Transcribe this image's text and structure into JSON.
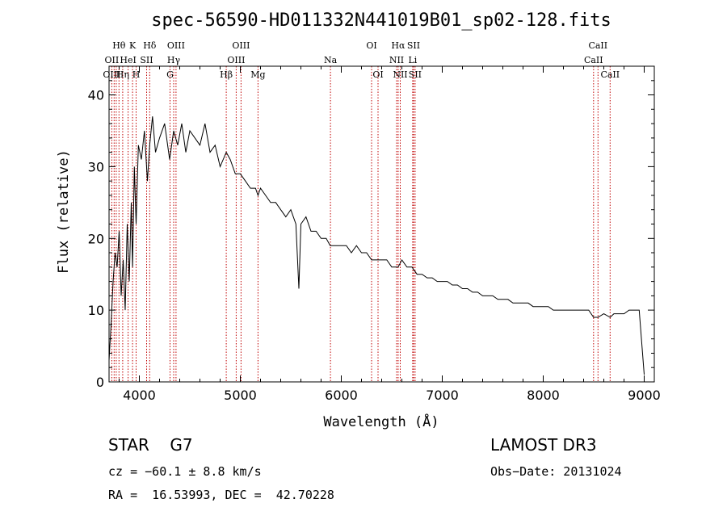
{
  "chart_data": {
    "type": "line",
    "title": "spec-56590-HD011332N441019B01_sp02-128.fits",
    "xlabel": "Wavelength (Å)",
    "ylabel": "Flux (relative)",
    "xlim": [
      3700,
      9100
    ],
    "ylim": [
      0,
      44
    ],
    "x_ticks": [
      4000,
      5000,
      6000,
      7000,
      8000,
      9000
    ],
    "y_ticks": [
      0,
      10,
      20,
      30,
      40
    ],
    "series": [
      {
        "name": "flux",
        "x": [
          3700,
          3720,
          3740,
          3760,
          3780,
          3800,
          3820,
          3840,
          3860,
          3880,
          3900,
          3920,
          3933,
          3950,
          3968,
          3990,
          4020,
          4050,
          4080,
          4102,
          4130,
          4160,
          4200,
          4250,
          4300,
          4340,
          4380,
          4420,
          4460,
          4500,
          4550,
          4600,
          4650,
          4700,
          4750,
          4800,
          4861,
          4900,
          4950,
          5000,
          5050,
          5100,
          5150,
          5175,
          5200,
          5250,
          5300,
          5350,
          5400,
          5450,
          5500,
          5550,
          5580,
          5600,
          5650,
          5700,
          5750,
          5800,
          5850,
          5890,
          5950,
          6000,
          6050,
          6100,
          6150,
          6200,
          6250,
          6300,
          6350,
          6400,
          6450,
          6500,
          6563,
          6600,
          6650,
          6700,
          6750,
          6800,
          6850,
          6900,
          6950,
          7000,
          7050,
          7100,
          7150,
          7200,
          7250,
          7300,
          7350,
          7400,
          7450,
          7500,
          7550,
          7600,
          7650,
          7700,
          7750,
          7800,
          7850,
          7900,
          7950,
          8000,
          8050,
          8100,
          8150,
          8200,
          8250,
          8300,
          8350,
          8400,
          8450,
          8498,
          8542,
          8600,
          8662,
          8700,
          8750,
          8800,
          8850,
          8900,
          8950,
          9000
        ],
        "y": [
          3,
          8,
          14,
          18,
          16,
          21,
          12,
          17,
          10,
          22,
          14,
          25,
          16,
          30,
          22,
          33,
          31,
          35,
          28,
          33,
          37,
          32,
          34,
          36,
          31,
          35,
          33,
          36,
          32,
          35,
          34,
          33,
          36,
          32,
          33,
          30,
          32,
          31,
          29,
          29,
          28,
          27,
          27,
          26,
          27,
          26,
          25,
          25,
          24,
          23,
          24,
          22,
          13,
          22,
          23,
          21,
          21,
          20,
          20,
          19,
          19,
          19,
          19,
          18,
          19,
          18,
          18,
          17,
          17,
          17,
          17,
          16,
          16,
          17,
          16,
          16,
          15,
          15,
          14.5,
          14.5,
          14,
          14,
          14,
          13.5,
          13.5,
          13,
          13,
          12.5,
          12.5,
          12,
          12,
          12,
          11.5,
          11.5,
          11.5,
          11,
          11,
          11,
          11,
          10.5,
          10.5,
          10.5,
          10.5,
          10,
          10,
          10,
          10,
          10,
          10,
          10,
          10,
          9,
          9,
          9.5,
          9,
          9.5,
          9.5,
          9.5,
          10,
          10,
          10,
          1
        ]
      }
    ],
    "line_labels": [
      {
        "text": "Hθ",
        "x": 3798,
        "row": 1
      },
      {
        "text": "OII",
        "x": 3727,
        "row": 2
      },
      {
        "text": "OIII",
        "x": 3727,
        "row": 3
      },
      {
        "text": "HeI",
        "x": 3889,
        "row": 2
      },
      {
        "text": "Hη",
        "x": 3835,
        "row": 3
      },
      {
        "text": "K",
        "x": 3933,
        "row": 1
      },
      {
        "text": "H",
        "x": 3968,
        "row": 3
      },
      {
        "text": "Hδ",
        "x": 4102,
        "row": 1
      },
      {
        "text": "SII",
        "x": 4072,
        "row": 2
      },
      {
        "text": "OIII",
        "x": 4363,
        "row": 1
      },
      {
        "text": "Hγ",
        "x": 4340,
        "row": 2
      },
      {
        "text": "G",
        "x": 4304,
        "row": 3
      },
      {
        "text": "Hβ",
        "x": 4861,
        "row": 3
      },
      {
        "text": "OIII",
        "x": 5007,
        "row": 1
      },
      {
        "text": "OIII",
        "x": 4959,
        "row": 2
      },
      {
        "text": "Mg",
        "x": 5175,
        "row": 3
      },
      {
        "text": "Na",
        "x": 5893,
        "row": 2
      },
      {
        "text": "OI",
        "x": 6300,
        "row": 1
      },
      {
        "text": "OI",
        "x": 6364,
        "row": 3
      },
      {
        "text": "Hα",
        "x": 6563,
        "row": 1
      },
      {
        "text": "SII",
        "x": 6716,
        "row": 1
      },
      {
        "text": "NII",
        "x": 6548,
        "row": 2
      },
      {
        "text": "Li",
        "x": 6707,
        "row": 2
      },
      {
        "text": "NII",
        "x": 6584,
        "row": 3
      },
      {
        "text": "SII",
        "x": 6731,
        "row": 3
      },
      {
        "text": "CaII",
        "x": 8542,
        "row": 1
      },
      {
        "text": "CaII",
        "x": 8498,
        "row": 2
      },
      {
        "text": "CaII",
        "x": 8662,
        "row": 3
      }
    ],
    "marker_lines": [
      3727,
      3750,
      3771,
      3798,
      3835,
      3889,
      3933,
      3968,
      4072,
      4102,
      4304,
      4340,
      4363,
      4861,
      4959,
      5007,
      5175,
      5893,
      6300,
      6364,
      6548,
      6563,
      6584,
      6707,
      6716,
      6731,
      8498,
      8542,
      8662
    ]
  },
  "info": {
    "class": "STAR    G7",
    "survey": "LAMOST DR3",
    "cz": "cz = −60.1 ± 8.8 km/s",
    "obs_date": "Obs−Date: 20131024",
    "radec": "RA =  16.53993, DEC =  42.70228"
  },
  "colors": {
    "marker": "#c00000",
    "line": "#000000"
  }
}
